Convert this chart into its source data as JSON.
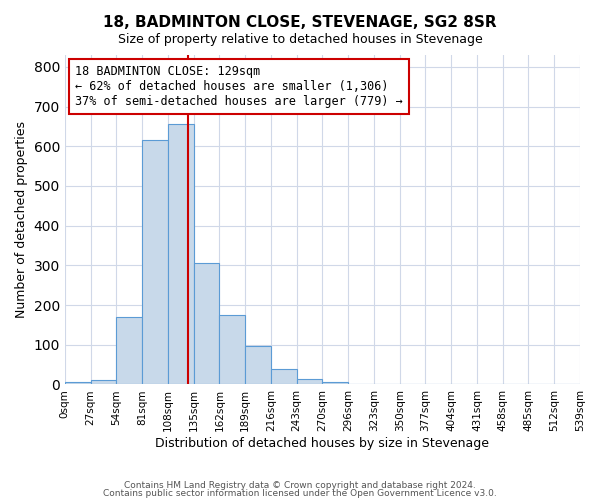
{
  "title": "18, BADMINTON CLOSE, STEVENAGE, SG2 8SR",
  "subtitle": "Size of property relative to detached houses in Stevenage",
  "xlabel": "Distribution of detached houses by size in Stevenage",
  "ylabel": "Number of detached properties",
  "bin_edges": [
    0,
    27,
    54,
    81,
    108,
    135,
    162,
    189,
    216,
    243,
    270,
    297,
    324,
    351,
    378,
    405,
    432,
    459,
    486,
    513,
    540
  ],
  "bin_labels": [
    "0sqm",
    "27sqm",
    "54sqm",
    "81sqm",
    "108sqm",
    "135sqm",
    "162sqm",
    "189sqm",
    "216sqm",
    "243sqm",
    "270sqm",
    "296sqm",
    "323sqm",
    "350sqm",
    "377sqm",
    "404sqm",
    "431sqm",
    "458sqm",
    "485sqm",
    "512sqm",
    "539sqm"
  ],
  "counts": [
    5,
    12,
    170,
    615,
    655,
    305,
    175,
    98,
    40,
    13,
    5,
    2,
    0,
    0,
    0,
    2,
    0,
    0,
    0,
    0
  ],
  "vline_x": 129,
  "annotation_title": "18 BADMINTON CLOSE: 129sqm",
  "annotation_line1": "← 62% of detached houses are smaller (1,306)",
  "annotation_line2": "37% of semi-detached houses are larger (779) →",
  "bar_facecolor": "#c8d9ea",
  "bar_edgecolor": "#5b9bd5",
  "vline_color": "#cc0000",
  "annotation_box_edgecolor": "#cc0000",
  "ylim": [
    0,
    830
  ],
  "yticks": [
    0,
    100,
    200,
    300,
    400,
    500,
    600,
    700,
    800
  ],
  "grid_color": "#d0d8e8",
  "footer1": "Contains HM Land Registry data © Crown copyright and database right 2024.",
  "footer2": "Contains public sector information licensed under the Open Government Licence v3.0."
}
